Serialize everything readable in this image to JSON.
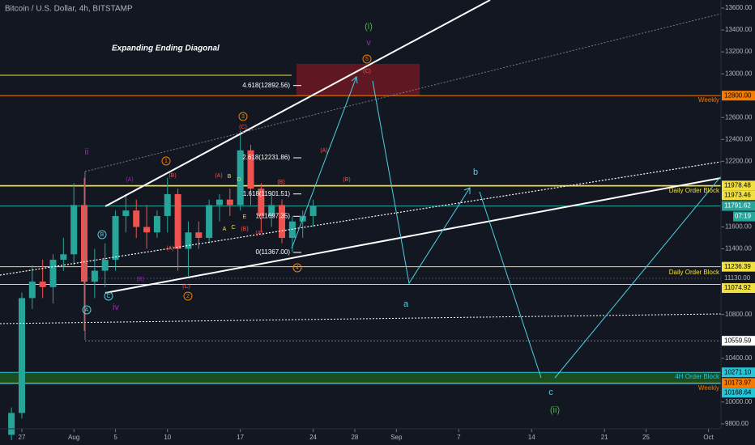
{
  "chart_data": {
    "type": "candlestick",
    "title": "Bitcoin / U.S. Dollar, 4h, BITSTAMP",
    "subtitle": "Expanding Ending Diagonal",
    "x": [
      -1,
      0,
      1,
      2,
      3,
      4,
      5,
      6,
      7,
      8,
      9,
      10,
      11,
      12,
      13,
      14,
      15,
      16,
      17,
      18,
      19,
      20,
      21,
      22,
      23,
      24,
      25,
      26,
      27,
      28
    ],
    "open": [
      9700,
      9900,
      10950,
      11100,
      11050,
      11300,
      11350,
      11800,
      11100,
      11200,
      11300,
      11700,
      11750,
      11600,
      11550,
      11700,
      11900,
      11400,
      11550,
      11500,
      11800,
      11850,
      11800,
      12300,
      11950,
      11700,
      11800,
      11500,
      11650,
      11700
    ],
    "high": [
      9950,
      11000,
      11250,
      11300,
      11350,
      11500,
      12000,
      12050,
      11400,
      11450,
      11750,
      11900,
      11850,
      11800,
      11750,
      12050,
      11950,
      11650,
      11650,
      11850,
      11900,
      11950,
      12480,
      12350,
      12000,
      11900,
      11850,
      11700,
      11750,
      11850
    ],
    "low": [
      9650,
      9850,
      10850,
      10950,
      10900,
      11200,
      11250,
      10650,
      10950,
      11050,
      11200,
      11550,
      11500,
      11400,
      11500,
      11550,
      11200,
      11150,
      11400,
      11450,
      11650,
      11700,
      11750,
      11800,
      11550,
      11600,
      11450,
      11370,
      11500,
      11600
    ],
    "close": [
      9900,
      10950,
      11100,
      11050,
      11300,
      11350,
      11800,
      11100,
      11200,
      11300,
      11700,
      11750,
      11600,
      11550,
      11700,
      11900,
      11400,
      11550,
      11500,
      11800,
      11850,
      11800,
      12300,
      11950,
      11700,
      11800,
      11500,
      11650,
      11700,
      11790
    ],
    "up_color": "#26a69a",
    "down_color": "#ef5350",
    "xlim": [
      -2.1,
      67.2
    ],
    "ylim": [
      9755,
      13674
    ],
    "xticks": [
      {
        "value": 0,
        "label": "27"
      },
      {
        "value": 5,
        "label": "Aug"
      },
      {
        "value": 9,
        "label": "5"
      },
      {
        "value": 14,
        "label": "10"
      },
      {
        "value": 21,
        "label": "17"
      },
      {
        "value": 28,
        "label": "24"
      },
      {
        "value": 32,
        "label": "28"
      },
      {
        "value": 36,
        "label": "Sep"
      },
      {
        "value": 42,
        "label": "7"
      },
      {
        "value": 49,
        "label": "14"
      },
      {
        "value": 56,
        "label": "21"
      },
      {
        "value": 60,
        "label": "25"
      },
      {
        "value": 66,
        "label": "Oct"
      }
    ],
    "yticks": [
      {
        "value": 13600,
        "label": "13600.00"
      },
      {
        "value": 13400,
        "label": "13400.00"
      },
      {
        "value": 13200,
        "label": "13200.00"
      },
      {
        "value": 13000,
        "label": "13000.00"
      },
      {
        "value": 12600,
        "label": "12600.00"
      },
      {
        "value": 12400,
        "label": "12400.00"
      },
      {
        "value": 12200,
        "label": "12200.00"
      },
      {
        "value": 11600,
        "label": "11600.00"
      },
      {
        "value": 11400,
        "label": "11400.00"
      },
      {
        "value": 10800,
        "label": "10800.00"
      },
      {
        "value": 10400,
        "label": "10400.00"
      },
      {
        "value": 10000,
        "label": "10000.00"
      },
      {
        "value": 9800,
        "label": "9800.00"
      }
    ],
    "levels": [
      {
        "value": 12800,
        "label": "12800.00",
        "color": "#f57c00"
      },
      {
        "value": 11978.48,
        "label": "11978.48",
        "color": "#f0e040"
      },
      {
        "value": 11973.46,
        "label": "11973.46",
        "color": "#f0e040"
      },
      {
        "value": 11791.62,
        "label": "11791.62",
        "color": "#26a69a"
      },
      {
        "value": 11236.39,
        "label": "11236.39",
        "color": "#f0e040"
      },
      {
        "value": 11130,
        "label": "11130.00",
        "color": "#434651"
      },
      {
        "value": 11074.92,
        "label": "11074.92",
        "color": "#f0e040"
      },
      {
        "value": 10559.59,
        "label": "10559.59",
        "color": "#787b86"
      },
      {
        "value": 10271.1,
        "label": "10271.10",
        "color": "#26c6da"
      },
      {
        "value": 10173.97,
        "label": "10173.97",
        "color": "#f57c00"
      },
      {
        "value": 10168.64,
        "label": "10168.64",
        "color": "#26c6da"
      }
    ],
    "countdown": "07:19",
    "fib": [
      {
        "value": 12892.56,
        "label": "4.618(12892.56)"
      },
      {
        "value": 12231.86,
        "label": "2.618(12231.86)"
      },
      {
        "value": 11901.51,
        "label": "1.618(11901.51)"
      },
      {
        "value": 11697.35,
        "label": "1(11697.35)"
      },
      {
        "value": 11367,
        "label": "0(11367.00)"
      }
    ],
    "notes": [
      "Weekly",
      "Daily Order Block",
      "Daily Order Block",
      "4H Order Block",
      "Weekly"
    ],
    "waves": [
      "(i)",
      "v",
      "5",
      "(C)",
      "3",
      "(C)",
      "(A)",
      "(B)",
      "1",
      "(B)",
      "(A)",
      "(A)",
      "B",
      "D",
      "A",
      "C",
      "E",
      "(B)",
      "(A)",
      "(B)",
      "(A)",
      "(C)",
      "2",
      "4",
      "ii",
      "iv",
      "B",
      "A",
      "C",
      "(B)",
      "b",
      "a",
      "c",
      "(ii)"
    ]
  }
}
